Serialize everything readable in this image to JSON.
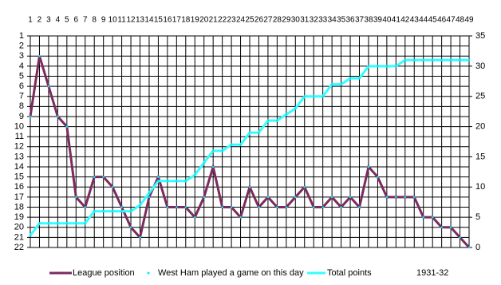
{
  "chart_data": {
    "type": "line",
    "x": [
      1,
      2,
      3,
      4,
      5,
      6,
      7,
      8,
      9,
      10,
      11,
      12,
      13,
      14,
      15,
      16,
      17,
      18,
      19,
      20,
      21,
      22,
      23,
      24,
      25,
      26,
      27,
      28,
      29,
      30,
      31,
      32,
      33,
      34,
      35,
      36,
      37,
      38,
      39,
      40,
      41,
      42,
      43,
      44,
      45,
      46,
      47,
      48,
      49
    ],
    "xlim": [
      1,
      49
    ],
    "ylim": [
      22,
      1
    ],
    "yticks": [
      1,
      2,
      3,
      4,
      5,
      6,
      7,
      8,
      9,
      10,
      11,
      12,
      13,
      14,
      15,
      16,
      17,
      18,
      19,
      20,
      21,
      22
    ],
    "y2lim": [
      0,
      35
    ],
    "y2ticks": [
      0,
      5,
      10,
      15,
      20,
      25,
      30,
      35
    ],
    "grid": true,
    "series": [
      {
        "name": "League position",
        "color": "#7b2b5c",
        "values": [
          9,
          3,
          6,
          9,
          10,
          17,
          18,
          15,
          15,
          16,
          18,
          20,
          21,
          17,
          15,
          18,
          18,
          18,
          19,
          17,
          14,
          18,
          18,
          19,
          16,
          18,
          17,
          18,
          18,
          17,
          16,
          18,
          18,
          17,
          18,
          17,
          18,
          14,
          15,
          17,
          17,
          17,
          17,
          19,
          19,
          20,
          20,
          21,
          22
        ]
      },
      {
        "name": "Total points",
        "color": "#33ffff",
        "axis": "y2",
        "values": [
          2,
          4,
          4,
          4,
          4,
          4,
          4,
          6,
          6,
          6,
          6,
          6,
          7,
          9,
          11,
          11,
          11,
          11,
          12,
          14,
          16,
          16,
          17,
          17,
          19,
          19,
          21,
          21,
          22,
          23,
          25,
          25,
          25,
          27,
          27,
          28,
          28,
          30,
          30,
          30,
          30,
          31,
          31,
          31,
          31,
          31,
          31,
          31,
          31
        ]
      }
    ],
    "marker": {
      "name": "West Ham played a game on this day",
      "color": "#00e5ff"
    },
    "season": "1931-32"
  }
}
